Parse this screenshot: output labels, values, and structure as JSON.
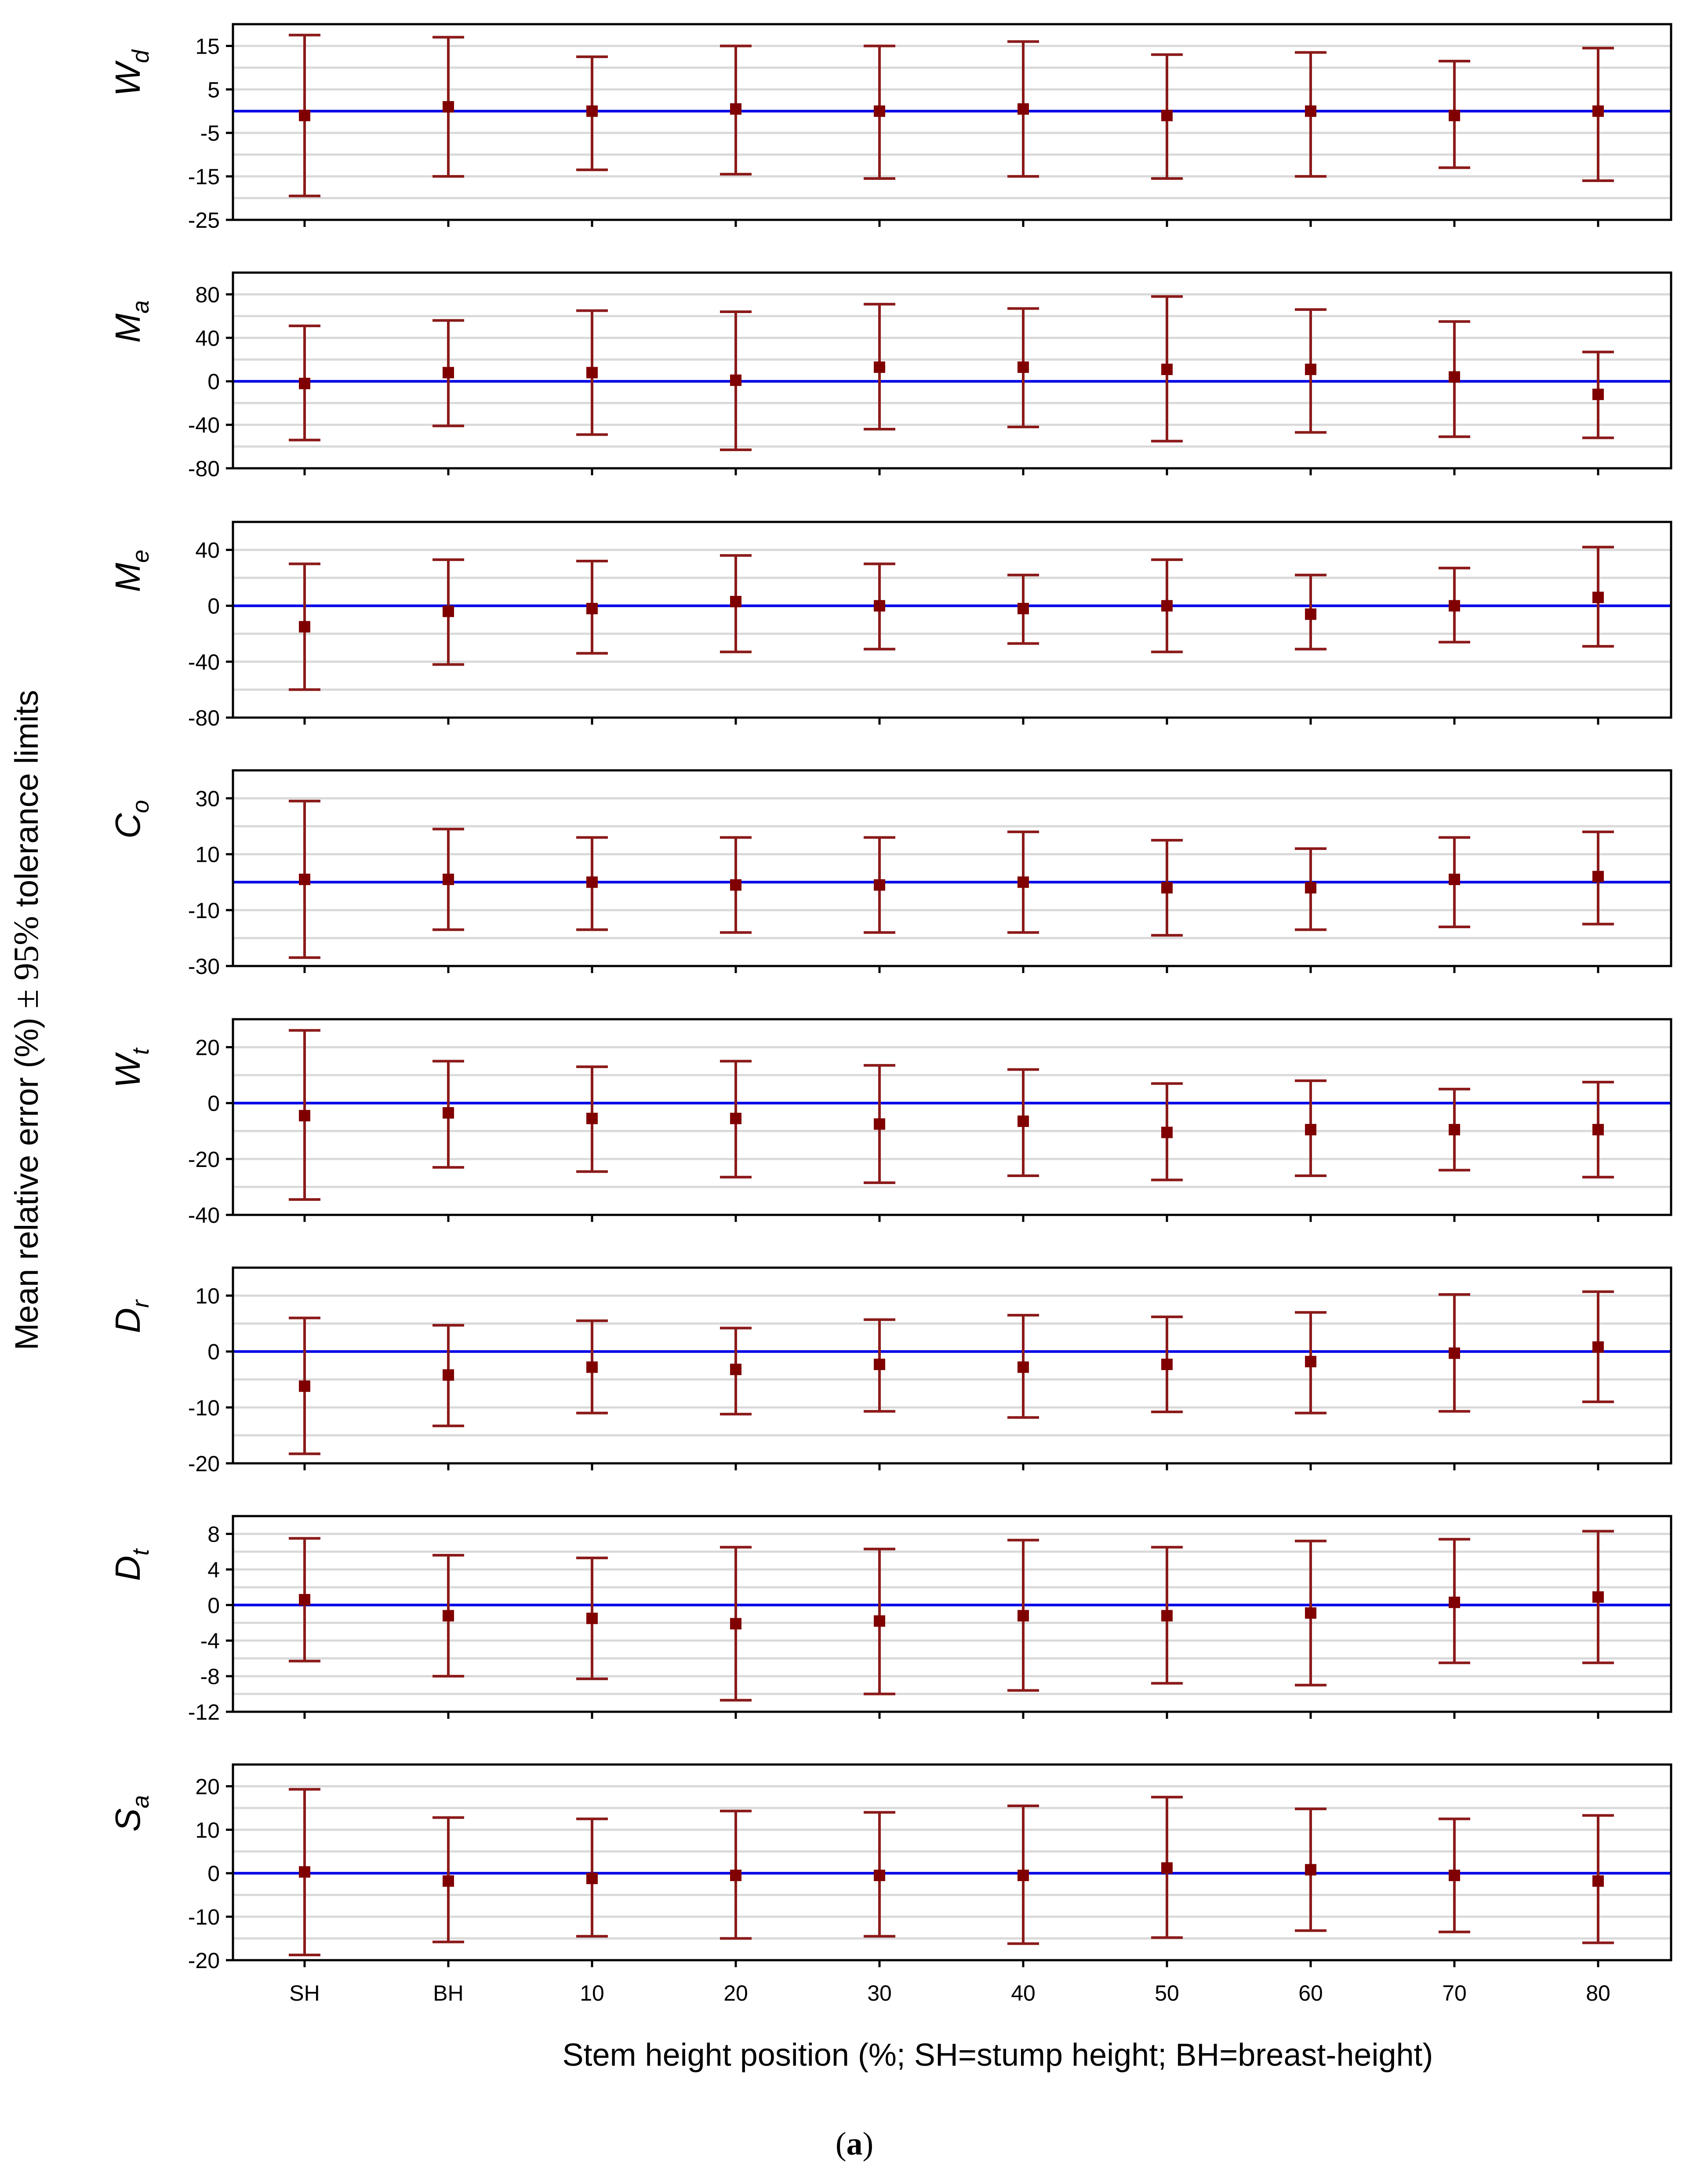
{
  "figure": {
    "ylabel_pre": "Mean relative error (%) ",
    "ylabel_pm": "± 95%",
    "ylabel_post": " tolerance limits",
    "xlabel": "Stem height position (%; SH=stump height; BH=breast-height)",
    "caption_pre": "(",
    "caption_letter": "a",
    "caption_post": ")"
  },
  "colors": {
    "marker": "#800000",
    "errorbar": "#8B1A1A",
    "zero_line": "#0000E6",
    "grid": "#D9D9D9",
    "axis": "#000000"
  },
  "chart_data": [
    {
      "type": "scatter",
      "ylabel": {
        "main": "W",
        "sub": "d"
      },
      "categories": [
        "SH",
        "BH",
        "10",
        "20",
        "30",
        "40",
        "50",
        "60",
        "70",
        "80"
      ],
      "y_ticks": [
        15,
        5,
        -5,
        -15,
        -25
      ],
      "ylim": [
        -25,
        20
      ],
      "grid_step": 5,
      "grid": true,
      "zero_line": true,
      "series": [
        {
          "mean": [
            -1.0,
            1.0,
            0.0,
            0.5,
            0.0,
            0.5,
            -1.0,
            0.0,
            -1.0,
            0.0
          ],
          "lower": [
            -19.5,
            -15.0,
            -13.5,
            -14.5,
            -15.5,
            -15.0,
            -15.5,
            -15.0,
            -13.0,
            -16.0
          ],
          "upper": [
            17.5,
            17.0,
            12.5,
            15.0,
            15.0,
            16.0,
            13.0,
            13.5,
            11.5,
            14.5
          ]
        }
      ]
    },
    {
      "type": "scatter",
      "ylabel": {
        "main": "M",
        "sub": "a"
      },
      "categories": [
        "SH",
        "BH",
        "10",
        "20",
        "30",
        "40",
        "50",
        "60",
        "70",
        "80"
      ],
      "y_ticks": [
        80,
        40,
        0,
        -40,
        -80
      ],
      "ylim": [
        -80,
        100
      ],
      "grid_step": 20,
      "grid": true,
      "zero_line": true,
      "series": [
        {
          "mean": [
            -2,
            8,
            8,
            1,
            13,
            13,
            11,
            11,
            4,
            -12
          ],
          "lower": [
            -54,
            -41,
            -49,
            -63,
            -44,
            -42,
            -55,
            -47,
            -51,
            -52
          ],
          "upper": [
            51,
            56,
            65,
            64,
            71,
            67,
            78,
            66,
            55,
            27
          ]
        }
      ]
    },
    {
      "type": "scatter",
      "ylabel": {
        "main": "M",
        "sub": "e"
      },
      "categories": [
        "SH",
        "BH",
        "10",
        "20",
        "30",
        "40",
        "50",
        "60",
        "70",
        "80"
      ],
      "y_ticks": [
        40,
        0,
        -40,
        -80
      ],
      "ylim": [
        -80,
        60
      ],
      "grid_step": 20,
      "grid": true,
      "zero_line": true,
      "series": [
        {
          "mean": [
            -15,
            -4,
            -2,
            3,
            0,
            -2,
            0,
            -6,
            0,
            6
          ],
          "lower": [
            -60,
            -42,
            -34,
            -33,
            -31,
            -27,
            -33,
            -31,
            -26,
            -29
          ],
          "upper": [
            30,
            33,
            32,
            36,
            30,
            22,
            33,
            22,
            27,
            42
          ]
        }
      ]
    },
    {
      "type": "scatter",
      "ylabel": {
        "main": "C",
        "sub": "o"
      },
      "categories": [
        "SH",
        "BH",
        "10",
        "20",
        "30",
        "40",
        "50",
        "60",
        "70",
        "80"
      ],
      "y_ticks": [
        30,
        10,
        -10,
        -30
      ],
      "ylim": [
        -30,
        40
      ],
      "grid_step": 10,
      "grid": true,
      "zero_line": true,
      "series": [
        {
          "mean": [
            1,
            1,
            0,
            -1,
            -1,
            0,
            -2,
            -2,
            1,
            2
          ],
          "lower": [
            -27,
            -17,
            -17,
            -18,
            -18,
            -18,
            -19,
            -17,
            -16,
            -15
          ],
          "upper": [
            29,
            19,
            16,
            16,
            16,
            18,
            15,
            12,
            16,
            18
          ]
        }
      ]
    },
    {
      "type": "scatter",
      "ylabel": {
        "main": "W",
        "sub": "t"
      },
      "categories": [
        "SH",
        "BH",
        "10",
        "20",
        "30",
        "40",
        "50",
        "60",
        "70",
        "80"
      ],
      "y_ticks": [
        20,
        0,
        -20,
        -40
      ],
      "ylim": [
        -40,
        30
      ],
      "grid_step": 10,
      "grid": true,
      "zero_line": true,
      "series": [
        {
          "mean": [
            -4.5,
            -3.5,
            -5.5,
            -5.5,
            -7.5,
            -6.5,
            -10.5,
            -9.5,
            -9.5,
            -9.5
          ],
          "lower": [
            -34.5,
            -23.0,
            -24.5,
            -26.5,
            -28.5,
            -26.0,
            -27.5,
            -26.0,
            -24.0,
            -26.5
          ],
          "upper": [
            26.0,
            15.0,
            13.0,
            15.0,
            13.5,
            12.0,
            7.0,
            8.0,
            5.0,
            7.5
          ]
        }
      ]
    },
    {
      "type": "scatter",
      "ylabel": {
        "main": "D",
        "sub": "r"
      },
      "categories": [
        "SH",
        "BH",
        "10",
        "20",
        "30",
        "40",
        "50",
        "60",
        "70",
        "80"
      ],
      "y_ticks": [
        10,
        0,
        -10,
        -20
      ],
      "ylim": [
        -20,
        15
      ],
      "grid_step": 5,
      "grid": true,
      "zero_line": true,
      "series": [
        {
          "mean": [
            -6.2,
            -4.2,
            -2.8,
            -3.2,
            -2.3,
            -2.8,
            -2.3,
            -1.8,
            -0.3,
            0.8
          ],
          "lower": [
            -18.3,
            -13.3,
            -11.0,
            -11.2,
            -10.7,
            -11.8,
            -10.8,
            -11.0,
            -10.7,
            -9.0
          ],
          "upper": [
            6.0,
            4.7,
            5.5,
            4.2,
            5.7,
            6.5,
            6.2,
            7.0,
            10.2,
            10.7
          ]
        }
      ]
    },
    {
      "type": "scatter",
      "ylabel": {
        "main": "D",
        "sub": "t"
      },
      "categories": [
        "SH",
        "BH",
        "10",
        "20",
        "30",
        "40",
        "50",
        "60",
        "70",
        "80"
      ],
      "y_ticks": [
        8,
        4,
        0,
        -4,
        -8,
        -12
      ],
      "ylim": [
        -12,
        10
      ],
      "grid_step": 2,
      "grid": true,
      "zero_line": true,
      "series": [
        {
          "mean": [
            0.6,
            -1.2,
            -1.5,
            -2.1,
            -1.8,
            -1.2,
            -1.2,
            -0.9,
            0.3,
            0.9
          ],
          "lower": [
            -6.3,
            -8.0,
            -8.3,
            -10.7,
            -10.0,
            -9.6,
            -8.8,
            -9.0,
            -6.5,
            -6.5
          ],
          "upper": [
            7.5,
            5.6,
            5.3,
            6.5,
            6.3,
            7.3,
            6.5,
            7.2,
            7.4,
            8.3
          ]
        }
      ]
    },
    {
      "type": "scatter",
      "ylabel": {
        "main": "S",
        "sub": "a"
      },
      "categories": [
        "SH",
        "BH",
        "10",
        "20",
        "30",
        "40",
        "50",
        "60",
        "70",
        "80"
      ],
      "y_ticks": [
        20,
        10,
        0,
        -10,
        -20
      ],
      "ylim": [
        -20,
        25
      ],
      "grid_step": 5,
      "grid": true,
      "zero_line": true,
      "series": [
        {
          "mean": [
            0.3,
            -1.8,
            -1.2,
            -0.5,
            -0.5,
            -0.5,
            1.2,
            0.8,
            -0.5,
            -1.8
          ],
          "lower": [
            -18.8,
            -15.8,
            -14.5,
            -15.0,
            -14.5,
            -16.2,
            -14.8,
            -13.2,
            -13.5,
            -16.0
          ],
          "upper": [
            19.3,
            12.8,
            12.5,
            14.3,
            14.0,
            15.5,
            17.5,
            14.8,
            12.5,
            13.3
          ]
        }
      ]
    }
  ]
}
